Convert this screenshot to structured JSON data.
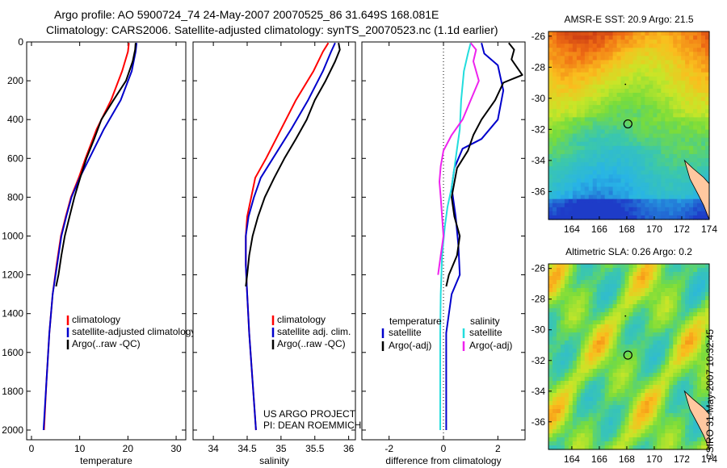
{
  "header": {
    "title_line1": "Argo profile: AO 5900724_74 24-May-2007 20070525_86 31.649S 168.081E",
    "title_line2": "Climatology: CARS2006. Satellite-adjusted climatology: synTS_20070523.nc (1.1d earlier)"
  },
  "credit": "CSIRO 31-May-2007 10:32:45",
  "colors": {
    "climatology": "#ff0000",
    "satellite": "#0000cc",
    "argo": "#000000",
    "sat_salinity": "#22dddd",
    "argo_salinity": "#ee22ee"
  },
  "chart_data": [
    {
      "type": "line",
      "name": "temperature-profile",
      "xlabel": "temperature",
      "ylabel": "",
      "xlim": [
        -1,
        32
      ],
      "ylim": [
        2050,
        0
      ],
      "y_reversed": true,
      "xticks": [
        0,
        10,
        20,
        30
      ],
      "yticks": [
        0,
        200,
        400,
        600,
        800,
        1000,
        1200,
        1400,
        1600,
        1800,
        2000
      ],
      "legend": [
        "climatology",
        "satellite-adjusted climatology",
        "Argo(..raw -QC)"
      ],
      "legend_position": "lower-right",
      "series": [
        {
          "name": "climatology",
          "color": "#ff0000",
          "x": [
            20.2,
            20.0,
            18.8,
            16.5,
            13.5,
            11.2,
            9.8,
            8.2,
            7.1,
            6.1,
            5.2,
            4.4,
            3.7,
            3.1,
            2.6
          ],
          "y": [
            5,
            50,
            150,
            300,
            450,
            600,
            700,
            800,
            900,
            1000,
            1150,
            1300,
            1500,
            1750,
            2000
          ]
        },
        {
          "name": "satellite-adjusted climatology",
          "color": "#0000cc",
          "x": [
            21.8,
            21.6,
            20.8,
            18.5,
            15.0,
            12.0,
            10.0,
            8.3,
            7.2,
            6.2,
            5.3,
            4.4,
            3.7,
            3.1,
            2.5
          ],
          "y": [
            5,
            50,
            150,
            300,
            450,
            600,
            700,
            800,
            900,
            1000,
            1150,
            1300,
            1500,
            1750,
            2000
          ]
        },
        {
          "name": "Argo(..raw -QC)",
          "color": "#000000",
          "x": [
            21.6,
            21.5,
            21.0,
            19.6,
            17.0,
            14.5,
            13.0,
            11.4,
            10.1,
            8.9,
            7.9,
            6.9,
            6.2,
            5.6,
            5.1
          ],
          "y": [
            5,
            40,
            100,
            200,
            300,
            400,
            500,
            600,
            700,
            800,
            900,
            1000,
            1100,
            1200,
            1260
          ]
        }
      ]
    },
    {
      "type": "line",
      "name": "salinity-profile",
      "xlabel": "salinity",
      "ylabel": "",
      "xlim": [
        33.7,
        36.1
      ],
      "ylim": [
        2050,
        0
      ],
      "y_reversed": true,
      "xticks": [
        34,
        34.5,
        35,
        35.5,
        36
      ],
      "legend": [
        "climatology",
        "satellite adj. clim.",
        "Argo(..raw -QC)"
      ],
      "legend_position": "lower-right",
      "annotation": [
        "US ARGO PROJECT",
        "PI: DEAN ROEMMICH"
      ],
      "series": [
        {
          "name": "climatology",
          "color": "#ff0000",
          "x": [
            35.7,
            35.62,
            35.48,
            35.22,
            35.0,
            34.78,
            34.62,
            34.56,
            34.5,
            34.48,
            34.48,
            34.5,
            34.53,
            34.58,
            34.63
          ],
          "y": [
            5,
            50,
            150,
            300,
            450,
            600,
            700,
            800,
            900,
            1000,
            1150,
            1300,
            1500,
            1750,
            2000
          ]
        },
        {
          "name": "satellite adj. clim.",
          "color": "#0000cc",
          "x": [
            35.8,
            35.74,
            35.62,
            35.4,
            35.15,
            34.88,
            34.7,
            34.6,
            34.52,
            34.48,
            34.48,
            34.5,
            34.53,
            34.58,
            34.63
          ],
          "y": [
            5,
            50,
            150,
            300,
            450,
            600,
            700,
            800,
            900,
            1000,
            1150,
            1300,
            1500,
            1750,
            2000
          ]
        },
        {
          "name": "Argo(..raw -QC)",
          "color": "#000000",
          "x": [
            35.85,
            35.87,
            35.8,
            35.66,
            35.5,
            35.38,
            35.22,
            35.05,
            34.9,
            34.76,
            34.66,
            34.58,
            34.53,
            34.5,
            34.48
          ],
          "y": [
            5,
            40,
            100,
            200,
            300,
            400,
            500,
            600,
            700,
            800,
            900,
            1000,
            1100,
            1200,
            1260
          ]
        }
      ]
    },
    {
      "type": "line",
      "name": "difference-profile",
      "xlabel": "difference from climatology",
      "ylabel": "",
      "xlim": [
        -3,
        3
      ],
      "ylim": [
        2050,
        0
      ],
      "y_reversed": true,
      "xticks": [
        -2,
        0,
        2
      ],
      "zero_line": "dotted",
      "legend_left_title": "temperature",
      "legend_right_title": "salinity",
      "legend": [
        "satellite",
        "Argo(-adj)",
        "satellite",
        "Argo(-adj)"
      ],
      "legend_position": "lower-center",
      "series": [
        {
          "name": "temperature satellite",
          "color": "#0000cc",
          "x": [
            1.4,
            1.5,
            2.0,
            2.2,
            2.0,
            1.4,
            0.7,
            0.4,
            0.3,
            0.45,
            0.55,
            0.6,
            0.3,
            0.1,
            0.1,
            0.1
          ],
          "y": [
            5,
            60,
            120,
            250,
            400,
            500,
            550,
            650,
            750,
            900,
            1050,
            1200,
            1300,
            1500,
            1800,
            2000
          ]
        },
        {
          "name": "temperature Argo(-adj)",
          "color": "#000000",
          "x": [
            2.4,
            2.6,
            2.5,
            2.9,
            2.2,
            1.9,
            1.4,
            1.1,
            0.9,
            0.5,
            0.3,
            0.4,
            0.6,
            0.5,
            0.2,
            0.1
          ],
          "y": [
            5,
            40,
            90,
            170,
            210,
            300,
            400,
            480,
            560,
            650,
            800,
            900,
            1000,
            1100,
            1200,
            1260
          ]
        },
        {
          "name": "salinity satellite",
          "color": "#22dddd",
          "x": [
            1.0,
            0.9,
            0.75,
            0.65,
            0.6,
            0.5,
            0.4,
            0.3,
            0.15,
            0.05,
            -0.05,
            -0.1,
            -0.12,
            -0.12,
            -0.12
          ],
          "y": [
            5,
            60,
            150,
            300,
            450,
            550,
            650,
            750,
            850,
            950,
            1100,
            1300,
            1500,
            1750,
            2000
          ]
        },
        {
          "name": "salinity Argo(-adj)",
          "color": "#ee22ee",
          "x": [
            1.0,
            1.2,
            1.1,
            1.3,
            1.0,
            0.7,
            0.3,
            0.0,
            -0.1,
            -0.15,
            -0.1,
            -0.05,
            0.0,
            -0.1,
            -0.2
          ],
          "y": [
            5,
            40,
            100,
            200,
            300,
            400,
            480,
            560,
            640,
            720,
            800,
            900,
            1000,
            1100,
            1200
          ]
        }
      ]
    },
    {
      "type": "heatmap",
      "name": "sst-map",
      "title": "AMSR-E SST: 20.9 Argo: 21.5",
      "xlim": [
        162.3,
        174
      ],
      "ylim": [
        -37.8,
        -25.7
      ],
      "xticks": [
        164,
        166,
        168,
        170,
        172,
        174
      ],
      "yticks": [
        -26,
        -28,
        -30,
        -32,
        -34,
        -36
      ],
      "float_position": [
        168.081,
        -31.649
      ]
    },
    {
      "type": "heatmap",
      "name": "sla-map",
      "title": "Altimetric SLA: 0.26 Argo: 0.2",
      "xlim": [
        162.3,
        174
      ],
      "ylim": [
        -37.8,
        -25.7
      ],
      "xticks": [
        164,
        166,
        168,
        170,
        172,
        174
      ],
      "yticks": [
        -26,
        -28,
        -30,
        -32,
        -34,
        -36
      ],
      "float_position": [
        168.081,
        -31.649
      ]
    }
  ]
}
